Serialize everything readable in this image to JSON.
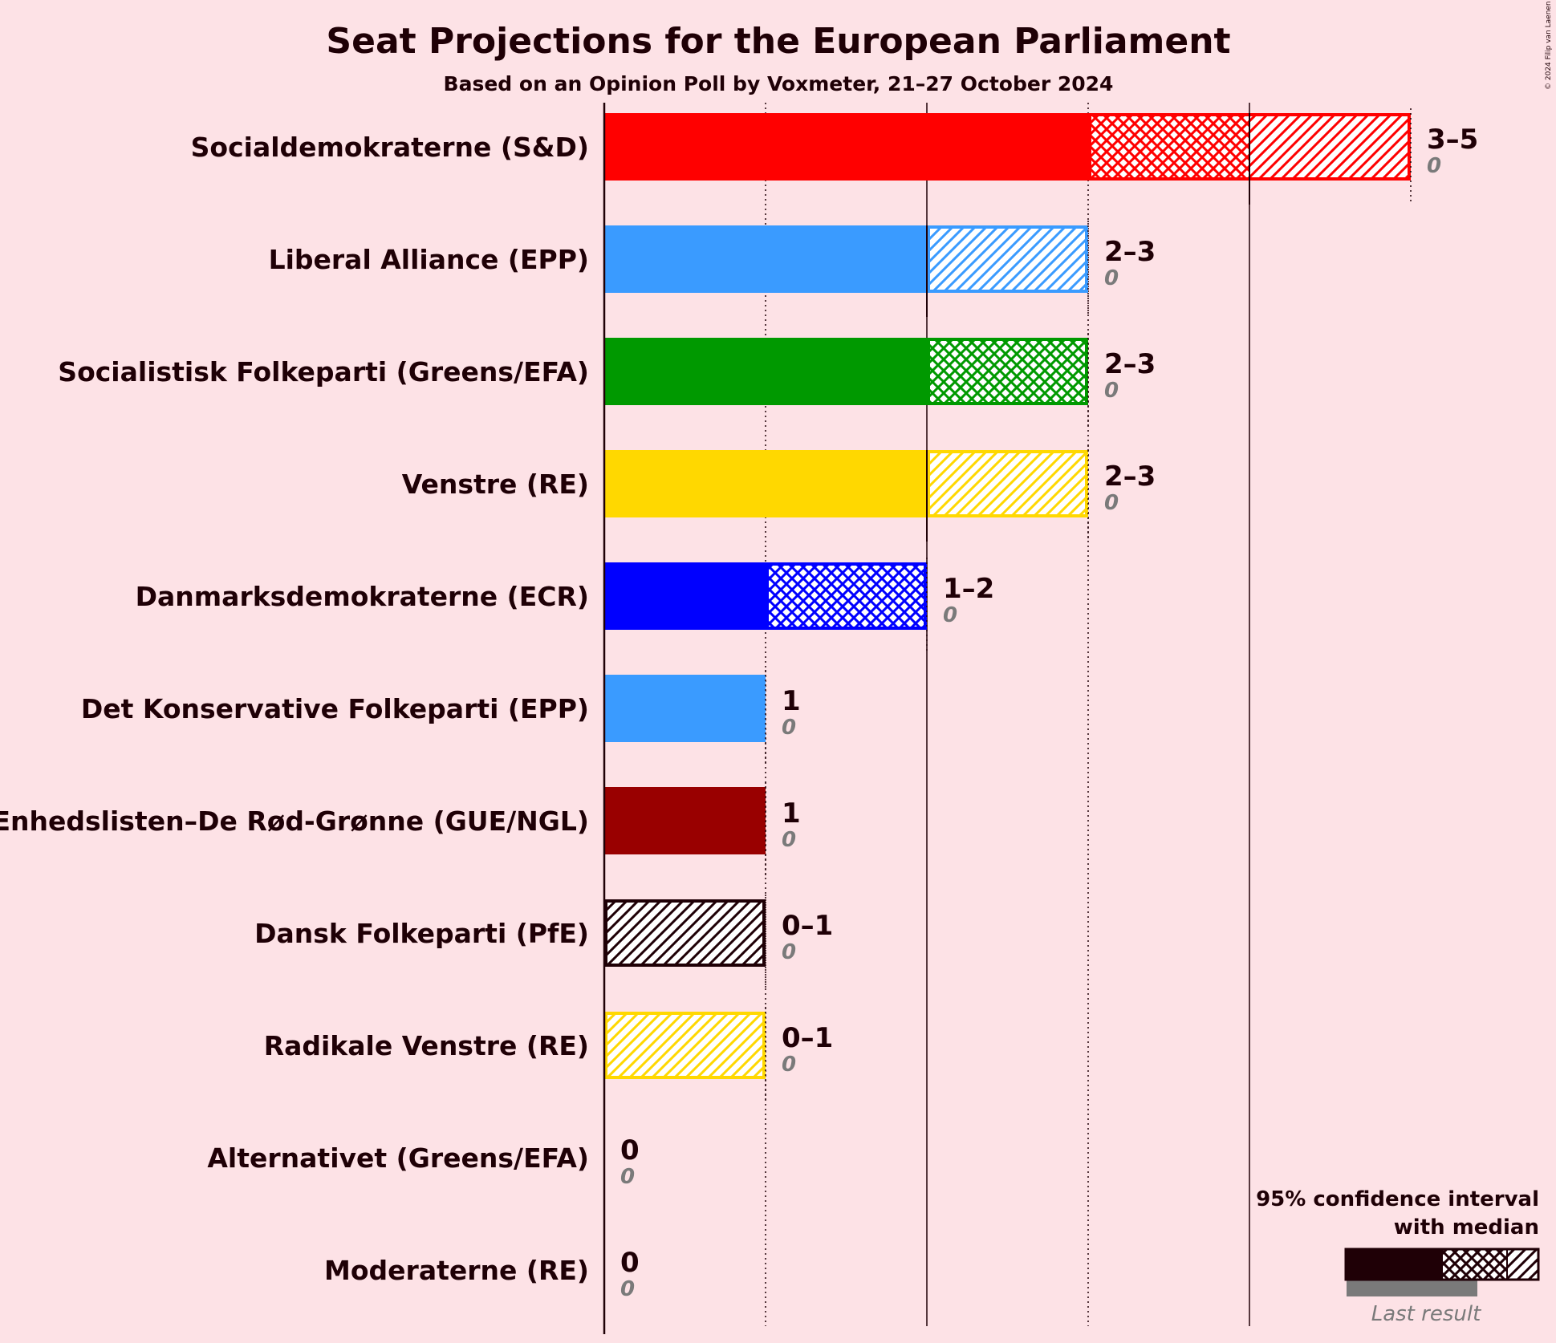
{
  "title": "Seat Projections for the European Parliament",
  "subtitle": "Based on an Opinion Poll by Voxmeter, 21–27 October 2024",
  "copyright": "© 2024 Filip van Laenen",
  "legend": {
    "line1": "95% confidence interval",
    "line2": "with median",
    "last_result": "Last result",
    "colors": {
      "solid": "#1f0006",
      "last": "#7a7a7a"
    }
  },
  "chart_data": {
    "type": "bar",
    "orientation": "horizontal",
    "x_range": [
      0,
      5
    ],
    "series": [
      {
        "party": "Socialdemokraterne (S&D)",
        "low": 3,
        "median": 4,
        "high": 5,
        "range_label": "3–5",
        "last_result": 0,
        "last_label": "0",
        "color": "#ff0000"
      },
      {
        "party": "Liberal Alliance (EPP)",
        "low": 2,
        "median": 2,
        "high": 3,
        "range_label": "2–3",
        "last_result": 0,
        "last_label": "0",
        "color": "#3a9bff"
      },
      {
        "party": "Socialistisk Folkeparti (Greens/EFA)",
        "low": 2,
        "median": 3,
        "high": 3,
        "range_label": "2–3",
        "last_result": 0,
        "last_label": "0",
        "color": "#009900"
      },
      {
        "party": "Venstre (RE)",
        "low": 2,
        "median": 2,
        "high": 3,
        "range_label": "2–3",
        "last_result": 0,
        "last_label": "0",
        "color": "#ffd800"
      },
      {
        "party": "Danmarksdemokraterne (ECR)",
        "low": 1,
        "median": 2,
        "high": 2,
        "range_label": "1–2",
        "last_result": 0,
        "last_label": "0",
        "color": "#0000ff"
      },
      {
        "party": "Det Konservative Folkeparti (EPP)",
        "low": 1,
        "median": 1,
        "high": 1,
        "range_label": "1",
        "last_result": 0,
        "last_label": "0",
        "color": "#3a9bff"
      },
      {
        "party": "Enhedslisten–De Rød-Grønne (GUE/NGL)",
        "low": 1,
        "median": 1,
        "high": 1,
        "range_label": "1",
        "last_result": 0,
        "last_label": "0",
        "color": "#990000"
      },
      {
        "party": "Dansk Folkeparti (PfE)",
        "low": 0,
        "median": 0,
        "high": 1,
        "range_label": "0–1",
        "last_result": 0,
        "last_label": "0",
        "color": "#1f0006"
      },
      {
        "party": "Radikale Venstre (RE)",
        "low": 0,
        "median": 0,
        "high": 1,
        "range_label": "0–1",
        "last_result": 0,
        "last_label": "0",
        "color": "#ffd800"
      },
      {
        "party": "Alternativet (Greens/EFA)",
        "low": 0,
        "median": 0,
        "high": 0,
        "range_label": "0",
        "last_result": 0,
        "last_label": "0",
        "color": "#009900"
      },
      {
        "party": "Moderaterne (RE)",
        "low": 0,
        "median": 0,
        "high": 0,
        "range_label": "0",
        "last_result": 0,
        "last_label": "0",
        "color": "#b48cf2"
      }
    ]
  }
}
